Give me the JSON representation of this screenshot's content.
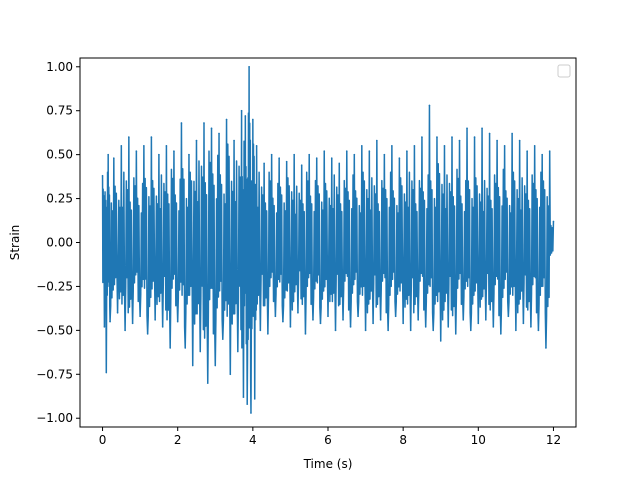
{
  "chart_data": {
    "type": "line",
    "title": "",
    "xlabel": "Time (s)",
    "ylabel": "Strain",
    "xlim": [
      -0.6,
      12.6
    ],
    "ylim": [
      -1.05,
      1.05
    ],
    "xticks": [
      0,
      2,
      4,
      6,
      8,
      10,
      12
    ],
    "xtick_labels": [
      "0",
      "2",
      "4",
      "6",
      "8",
      "10",
      "12"
    ],
    "yticks": [
      -1.0,
      -0.75,
      -0.5,
      -0.25,
      0.0,
      0.25,
      0.5,
      0.75,
      1.0
    ],
    "ytick_labels": [
      "−1.00",
      "−0.75",
      "−0.50",
      "−0.25",
      "0.00",
      "0.25",
      "0.50",
      "0.75",
      "1.00"
    ],
    "grid": false,
    "legend": {
      "placement": "top-right",
      "entries": []
    },
    "series": [
      {
        "color": "#1f77b4",
        "x": [
          0.0,
          0.05,
          0.1,
          0.15,
          0.2,
          0.3,
          0.4,
          0.5,
          0.6,
          0.7,
          0.8,
          0.9,
          1.0,
          1.1,
          1.2,
          1.3,
          1.4,
          1.5,
          1.6,
          1.7,
          1.8,
          1.9,
          2.0,
          2.1,
          2.2,
          2.3,
          2.4,
          2.5,
          2.6,
          2.7,
          2.8,
          2.9,
          3.0,
          3.1,
          3.2,
          3.3,
          3.4,
          3.5,
          3.6,
          3.7,
          3.75,
          3.8,
          3.85,
          3.9,
          3.95,
          4.0,
          4.05,
          4.1,
          4.2,
          4.3,
          4.4,
          4.5,
          4.6,
          4.7,
          4.8,
          4.9,
          5.0,
          5.1,
          5.2,
          5.3,
          5.4,
          5.5,
          5.6,
          5.7,
          5.8,
          5.9,
          6.0,
          6.1,
          6.2,
          6.3,
          6.4,
          6.5,
          6.6,
          6.7,
          6.8,
          6.9,
          7.0,
          7.1,
          7.2,
          7.3,
          7.4,
          7.5,
          7.6,
          7.7,
          7.8,
          7.9,
          8.0,
          8.1,
          8.2,
          8.3,
          8.4,
          8.5,
          8.6,
          8.7,
          8.8,
          8.9,
          9.0,
          9.1,
          9.2,
          9.3,
          9.4,
          9.5,
          9.6,
          9.7,
          9.8,
          9.9,
          10.0,
          10.1,
          10.2,
          10.3,
          10.4,
          10.5,
          10.6,
          10.7,
          10.8,
          10.9,
          11.0,
          11.1,
          11.2,
          11.3,
          11.4,
          11.5,
          11.6,
          11.7,
          11.8,
          11.9,
          12.0
        ],
        "y": [
          0.38,
          -0.48,
          -0.74,
          0.5,
          -0.45,
          0.48,
          -0.4,
          0.55,
          -0.5,
          0.6,
          -0.46,
          0.52,
          -0.42,
          0.55,
          -0.52,
          0.6,
          -0.44,
          0.5,
          -0.48,
          0.55,
          -0.6,
          0.52,
          -0.45,
          0.68,
          -0.6,
          0.5,
          -0.7,
          0.58,
          -0.62,
          0.68,
          -0.8,
          0.65,
          -0.7,
          0.62,
          -0.55,
          0.7,
          -0.75,
          0.58,
          -0.62,
          0.75,
          -0.88,
          0.72,
          -0.92,
          1.0,
          -0.97,
          0.7,
          -0.89,
          0.55,
          -0.5,
          0.45,
          -0.52,
          0.5,
          -0.42,
          0.48,
          -0.45,
          0.46,
          -0.48,
          0.5,
          -0.4,
          0.44,
          -0.52,
          0.5,
          -0.44,
          0.48,
          -0.46,
          0.52,
          -0.42,
          0.48,
          -0.5,
          0.45,
          -0.44,
          0.52,
          -0.48,
          0.5,
          -0.42,
          0.55,
          -0.5,
          0.52,
          -0.46,
          0.58,
          -0.44,
          0.5,
          -0.5,
          0.55,
          -0.42,
          0.48,
          -0.46,
          0.52,
          -0.5,
          0.55,
          -0.44,
          0.6,
          -0.48,
          0.78,
          -0.5,
          0.6,
          -0.56,
          0.55,
          -0.48,
          0.6,
          -0.52,
          0.58,
          -0.44,
          0.65,
          -0.5,
          0.6,
          -0.46,
          0.65,
          -0.44,
          0.62,
          -0.48,
          0.58,
          -0.52,
          0.55,
          -0.42,
          0.62,
          -0.5,
          0.58,
          -0.46,
          0.52,
          -0.48,
          0.55,
          -0.5,
          0.5,
          -0.6,
          0.52,
          0.12
        ]
      }
    ]
  }
}
